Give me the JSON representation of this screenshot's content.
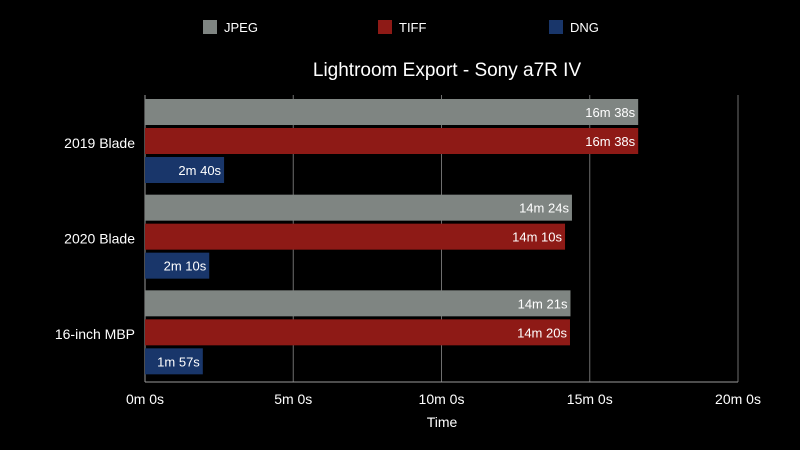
{
  "chart_data": {
    "type": "bar",
    "orientation": "horizontal",
    "title": "Lightroom Export - Sony a7R IV",
    "xlabel": "Time",
    "ylabel": "",
    "xlim": [
      0,
      1200
    ],
    "x_ticks": [
      0,
      300,
      600,
      900,
      1200
    ],
    "x_tick_labels": [
      "0m 0s",
      "5m 0s",
      "10m 0s",
      "15m 0s",
      "20m 0s"
    ],
    "grid": true,
    "legend_position": "top",
    "categories": [
      "2019 Blade",
      "2020 Blade",
      "16-inch MBP"
    ],
    "series": [
      {
        "name": "JPEG",
        "color": "#7f8582",
        "values": [
          998,
          864,
          861
        ],
        "labels": [
          "16m 38s",
          "14m 24s",
          "14m 21s"
        ]
      },
      {
        "name": "TIFF",
        "color": "#8e1a16",
        "values": [
          998,
          850,
          860
        ],
        "labels": [
          "16m 38s",
          "14m 10s",
          "14m 20s"
        ]
      },
      {
        "name": "DNG",
        "color": "#19366a",
        "values": [
          160,
          130,
          117
        ],
        "labels": [
          "2m 40s",
          "2m 10s",
          "1m 57s"
        ]
      }
    ]
  }
}
